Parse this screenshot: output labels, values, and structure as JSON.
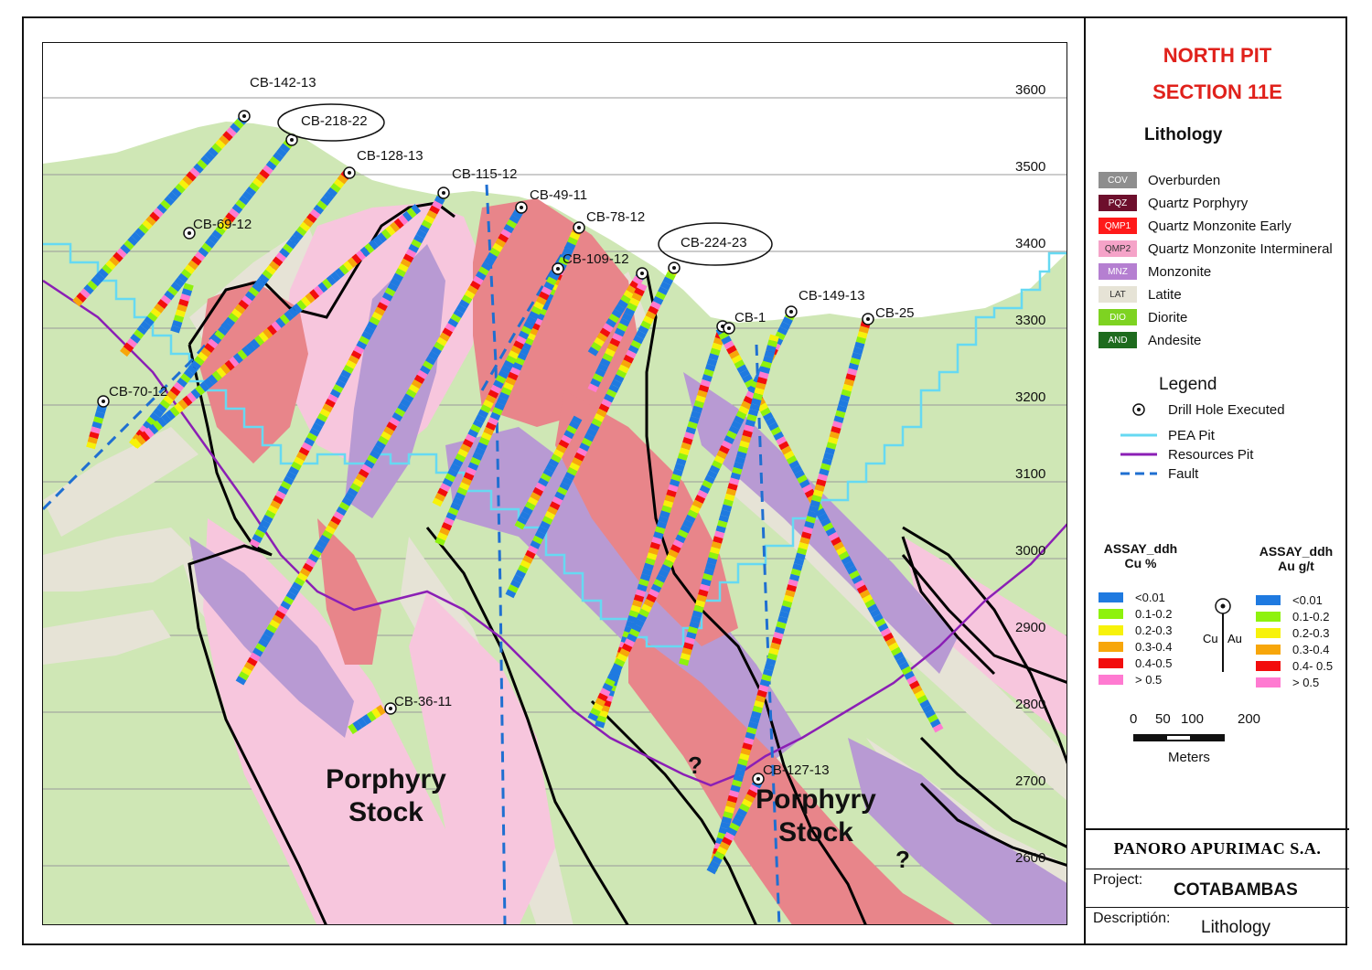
{
  "panel": {
    "title_line1": "NORTH PIT",
    "title_line2": "SECTION 11E",
    "lithology_heading": "Lithology",
    "lithology": [
      {
        "code": "COV",
        "label": "Overburden",
        "color": "#8e8e8e",
        "text_color": "#ffffff"
      },
      {
        "code": "PQZ",
        "label": "Quartz Porphyry",
        "color": "#6d0f2c",
        "text_color": "#ffffff"
      },
      {
        "code": "QMP1",
        "label": "Quartz Monzonite Early",
        "color": "#ff1a1a",
        "text_color": "#ffffff"
      },
      {
        "code": "QMP2",
        "label": "Quartz Monzonite Intermineral",
        "color": "#f5a3c8",
        "text_color": "#333333"
      },
      {
        "code": "MNZ",
        "label": "Monzonite",
        "color": "#b57fd1",
        "text_color": "#ffffff"
      },
      {
        "code": "LAT",
        "label": "Latite",
        "color": "#e6e3d6",
        "text_color": "#333333"
      },
      {
        "code": "DIO",
        "label": "Diorite",
        "color": "#7ed321",
        "text_color": "#ffffff"
      },
      {
        "code": "AND",
        "label": "Andesite",
        "color": "#1e6b1e",
        "text_color": "#ffffff"
      }
    ],
    "legend_heading": "Legend",
    "legend": [
      {
        "symbol": "drill-hole",
        "label": "Drill Hole Executed"
      },
      {
        "symbol": "pea-pit",
        "label": "PEA Pit",
        "color": "#66d9f2"
      },
      {
        "symbol": "resources-pit",
        "label": "Resources Pit",
        "color": "#8b1fb5"
      },
      {
        "symbol": "fault",
        "label": "Fault",
        "color": "#1f6fd1"
      }
    ],
    "assay_cu": {
      "heading_line1": "ASSAY_ddh",
      "heading_line2": "Cu %",
      "items": [
        {
          "label": "<0.01",
          "color": "#1f7ae0"
        },
        {
          "label": "0.1-0.2",
          "color": "#8ef20d"
        },
        {
          "label": "0.2-0.3",
          "color": "#f7f20a"
        },
        {
          "label": "0.3-0.4",
          "color": "#f7a60a"
        },
        {
          "label": "0.4-0.5",
          "color": "#f20d0d"
        },
        {
          "label": "> 0.5",
          "color": "#ff7ad1"
        }
      ]
    },
    "assay_au": {
      "heading_line1": "ASSAY_ddh",
      "heading_line2": "Au g/t",
      "items": [
        {
          "label": "<0.01",
          "color": "#1f7ae0"
        },
        {
          "label": "0.1-0.2",
          "color": "#8ef20d"
        },
        {
          "label": "0.2-0.3",
          "color": "#f7f20a"
        },
        {
          "label": "0.3-0.4",
          "color": "#f7a60a"
        },
        {
          "label": "0.4- 0.5",
          "color": "#f20d0d"
        },
        {
          "label": "> 0.5",
          "color": "#ff7ad1"
        }
      ]
    },
    "hole_symbol_labels": {
      "left": "Cu",
      "right": "Au"
    },
    "scale": {
      "ticks": [
        "0",
        "50",
        "100",
        "200"
      ],
      "unit": "Meters"
    },
    "company": "PANORO APURIMAC S.A.",
    "project_label": "Project:",
    "project_value": "COTABAMBAS",
    "description_label": "Descriptión:",
    "description_value": "Lithology"
  },
  "section": {
    "elevations": [
      "3600",
      "3500",
      "3400",
      "3300",
      "3200",
      "3100",
      "3000",
      "2900",
      "2800",
      "2700",
      "2600"
    ],
    "holes": [
      "CB-142-13",
      "CB-218-22",
      "CB-128-13",
      "CB-115-12",
      "CB-49-11",
      "CB-78-12",
      "CB-69-12",
      "CB-109-12",
      "CB-224-23",
      "CB-1",
      "CB-149-13",
      "CB-25",
      "CB-70-12",
      "CB-36-11",
      "CB-127-13"
    ],
    "unit_labels": [
      {
        "line1": "Porphyry",
        "line2": "Stock"
      },
      {
        "line1": "Porphyry",
        "line2": "Stock"
      }
    ],
    "unknown_markers": [
      "?",
      "?"
    ]
  }
}
